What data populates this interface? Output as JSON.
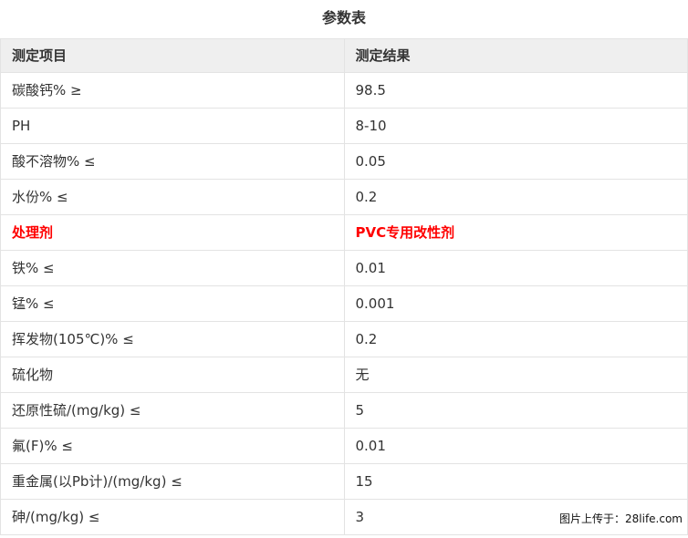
{
  "page": {
    "title": "参数表",
    "watermark": "图片上传于：28life.com"
  },
  "table": {
    "headers": [
      "测定项目",
      "测定结果"
    ],
    "rows": [
      {
        "item": "碳酸钙% ≥",
        "result": "98.5",
        "highlight": false
      },
      {
        "item": "PH",
        "result": "8-10",
        "highlight": false
      },
      {
        "item": "酸不溶物% ≤",
        "result": "0.05",
        "highlight": false
      },
      {
        "item": "水份% ≤",
        "result": "0.2",
        "highlight": false
      },
      {
        "item": "处理剂",
        "result": "PVC专用改性剂",
        "highlight": true
      },
      {
        "item": "铁% ≤",
        "result": "0.01",
        "highlight": false
      },
      {
        "item": "锰% ≤",
        "result": "0.001",
        "highlight": false
      },
      {
        "item": "挥发物(105℃)% ≤",
        "result": "0.2",
        "highlight": false
      },
      {
        "item": "硫化物",
        "result": "无",
        "highlight": false
      },
      {
        "item": "还原性硫/(mg/kg) ≤",
        "result": "5",
        "highlight": false
      },
      {
        "item": "氟(F)% ≤",
        "result": "0.01",
        "highlight": false
      },
      {
        "item": "重金属(以Pb计)/(mg/kg) ≤",
        "result": "15",
        "highlight": false
      },
      {
        "item": "砷/(mg/kg) ≤",
        "result": "3",
        "highlight": false
      }
    ]
  },
  "colors": {
    "text": "#333333",
    "highlight": "#ff0000",
    "header_bg": "#efefef",
    "border": "#e3e3e3",
    "watermark": "#111111",
    "page_bg": "#ffffff"
  }
}
